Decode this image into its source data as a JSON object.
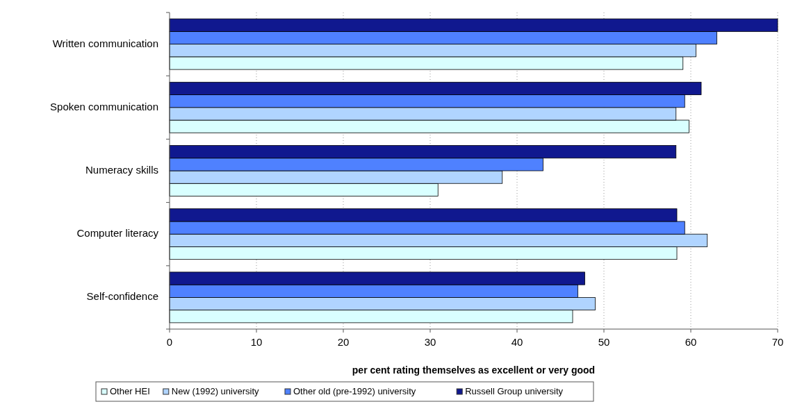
{
  "chart_data": {
    "type": "bar",
    "orientation": "horizontal",
    "xlabel": "per cent rating themselves as excellent or very good",
    "categories": [
      "Written communication",
      "Spoken communication",
      "Numeracy skills",
      "Computer literacy",
      "Self-confidence"
    ],
    "series": [
      {
        "name": "Other HEI",
        "color": "#d9ffff",
        "values": [
          59.1,
          59.8,
          30.9,
          58.4,
          46.4
        ]
      },
      {
        "name": "New (1992) university",
        "color": "#b0d4ff",
        "values": [
          60.6,
          58.3,
          38.3,
          61.9,
          49.0
        ]
      },
      {
        "name": "Other old (pre-1992) university",
        "color": "#4f81ff",
        "values": [
          63.0,
          59.3,
          43.0,
          59.3,
          47.0
        ]
      },
      {
        "name": "Russell Group university",
        "color": "#10188f",
        "values": [
          70,
          61.2,
          58.3,
          58.4,
          47.8
        ]
      }
    ],
    "xlim": [
      0,
      70
    ],
    "xticks": [
      0,
      10,
      20,
      30,
      40,
      50,
      60,
      70
    ],
    "grid": "x",
    "legend": "bottom"
  }
}
